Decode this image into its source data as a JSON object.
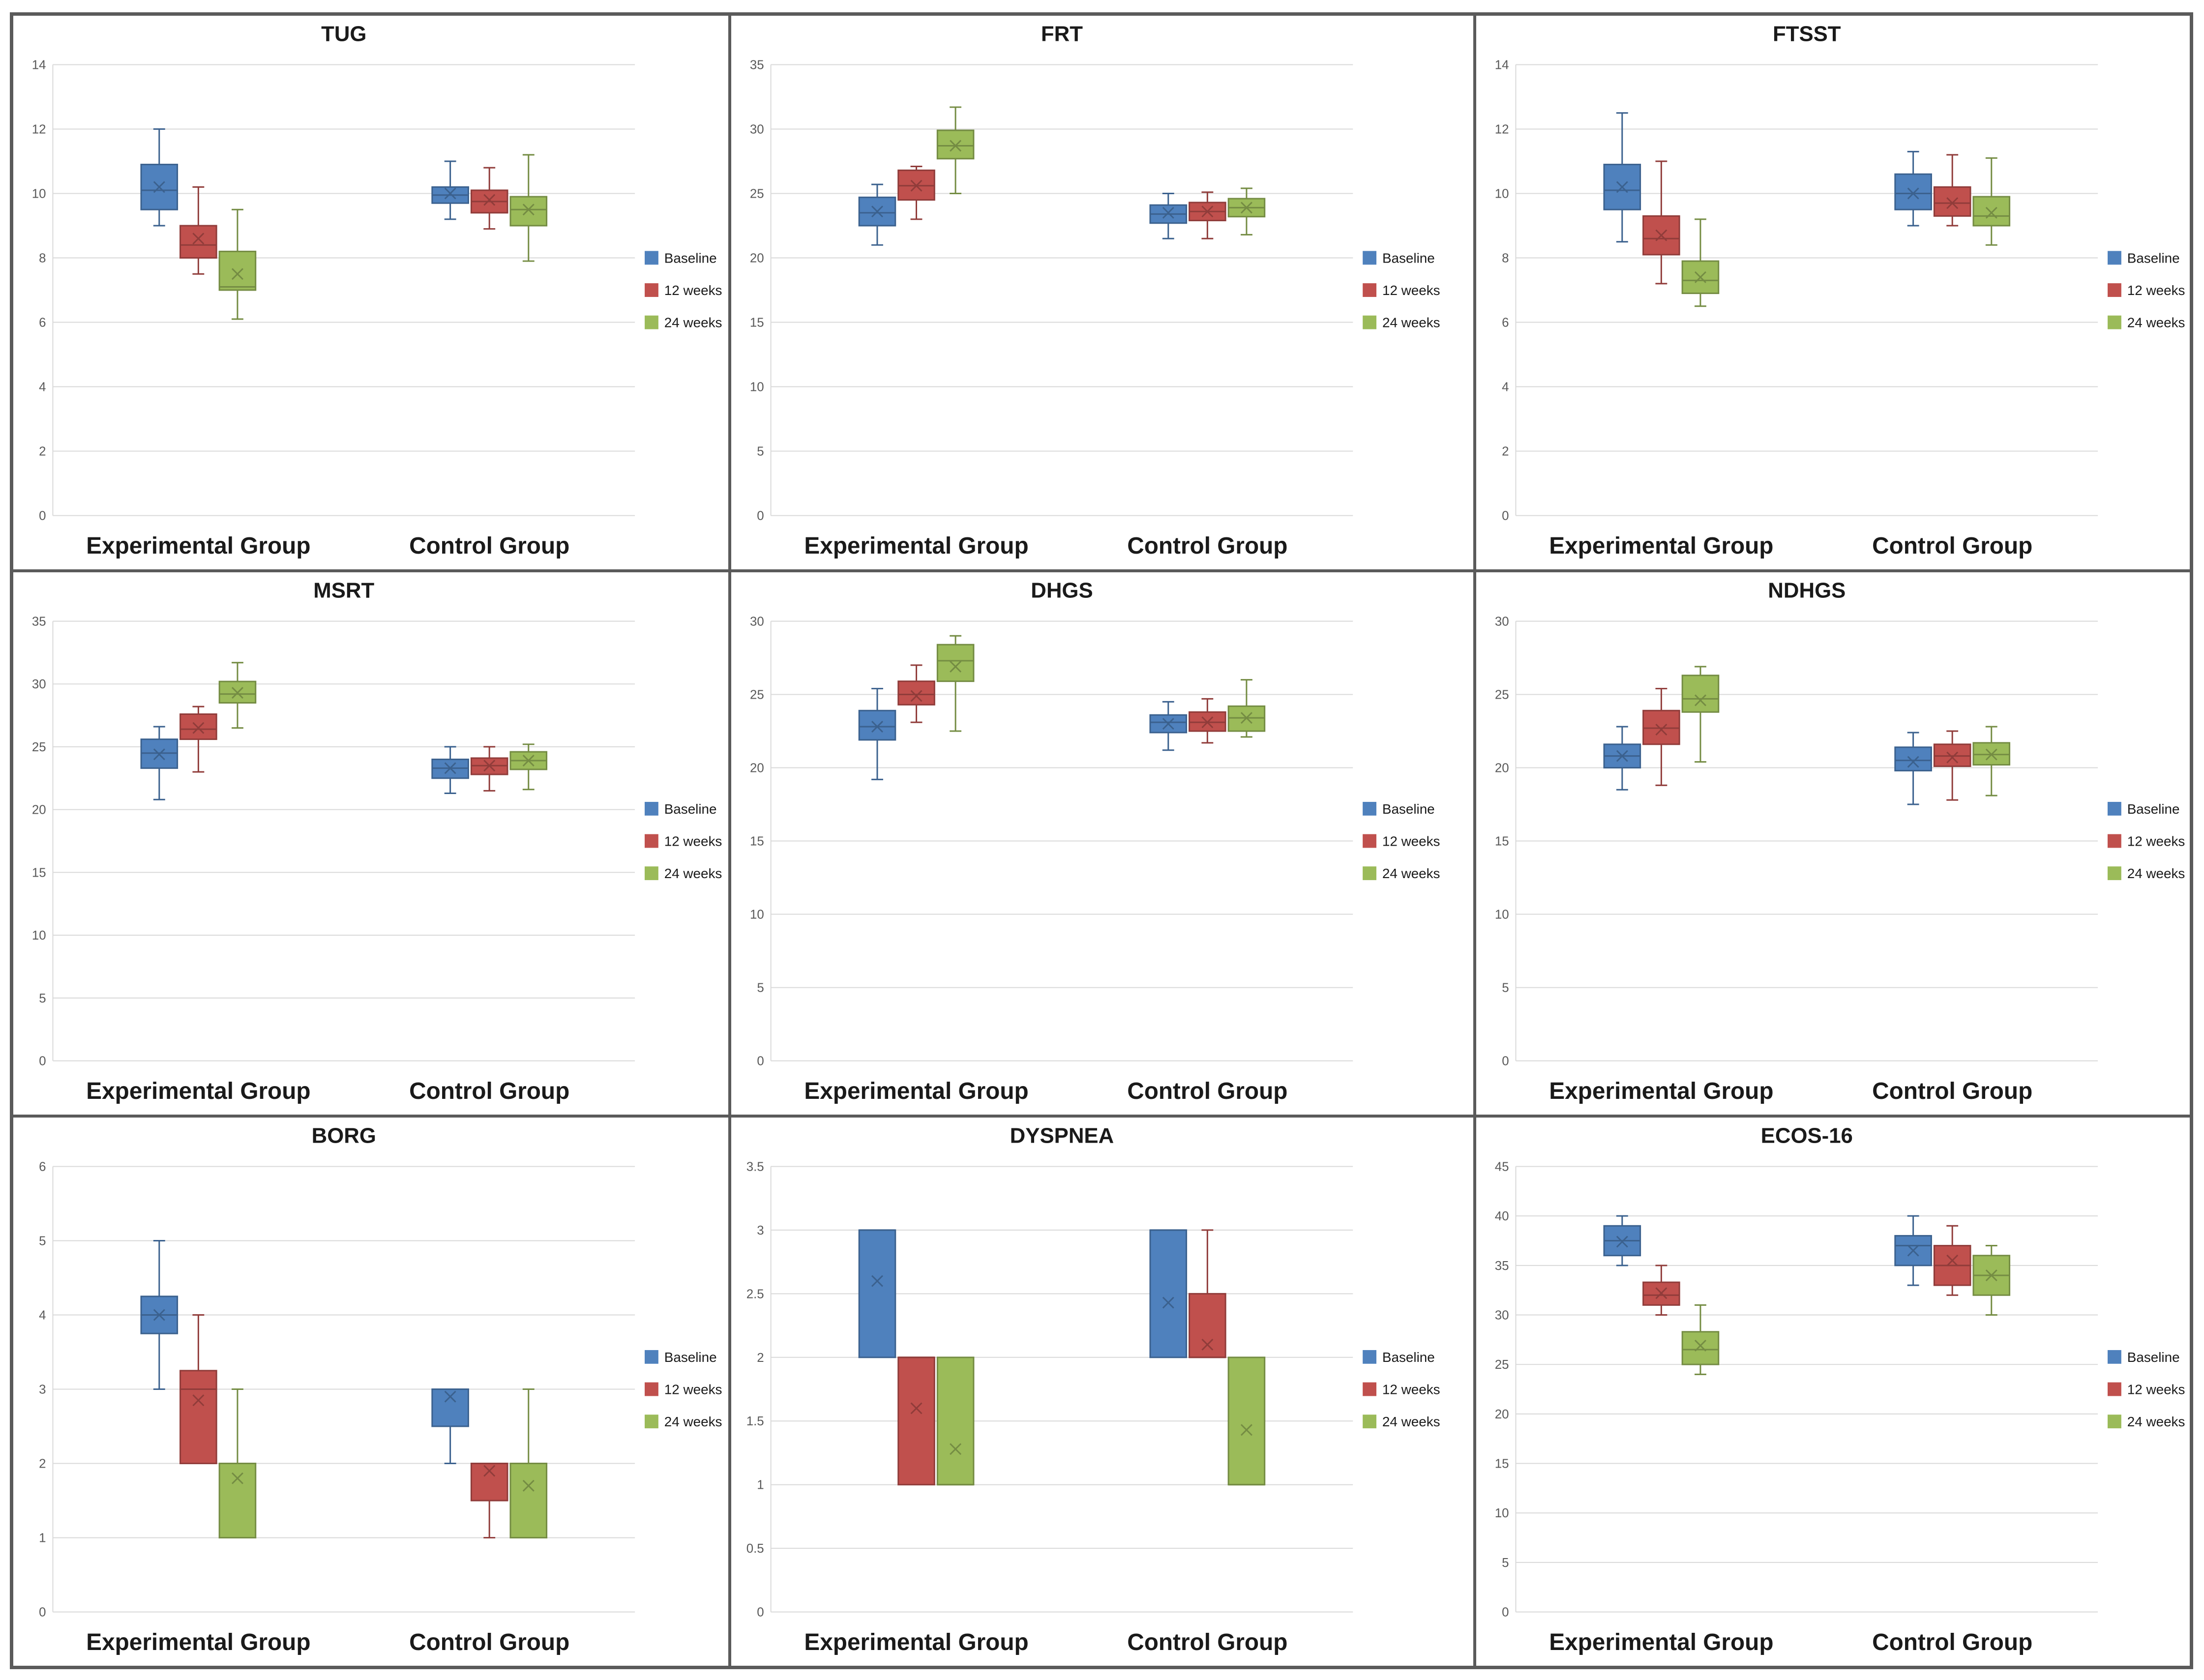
{
  "chart_data": [
    {
      "type": "box",
      "title": "TUG",
      "categories": [
        "Experimental Group",
        "Control Group"
      ],
      "ylim": [
        0,
        14
      ],
      "ytick_step": 2,
      "yticks": [
        "0",
        "2",
        "4",
        "6",
        "8",
        "10",
        "12",
        "14"
      ],
      "legend": [
        "Baseline",
        "12 weeks",
        "24 weeks"
      ],
      "series": [
        {
          "name": "Baseline",
          "color": "#4f81bd",
          "boxes": [
            {
              "min": 9.0,
              "q1": 9.5,
              "median": 10.1,
              "q3": 10.9,
              "max": 12.0,
              "mean": 10.2
            },
            {
              "min": 9.2,
              "q1": 9.7,
              "median": 9.95,
              "q3": 10.2,
              "max": 11.0,
              "mean": 10.0
            }
          ]
        },
        {
          "name": "12 weeks",
          "color": "#c0504d",
          "boxes": [
            {
              "min": 7.5,
              "q1": 8.0,
              "median": 8.4,
              "q3": 9.0,
              "max": 10.2,
              "mean": 8.6
            },
            {
              "min": 8.9,
              "q1": 9.4,
              "median": 9.75,
              "q3": 10.1,
              "max": 10.8,
              "mean": 9.8
            }
          ]
        },
        {
          "name": "24 weeks",
          "color": "#9bbb59",
          "boxes": [
            {
              "min": 6.1,
              "q1": 7.0,
              "median": 7.1,
              "q3": 8.2,
              "max": 9.5,
              "mean": 7.5
            },
            {
              "min": 7.9,
              "q1": 9.0,
              "median": 9.5,
              "q3": 9.9,
              "max": 11.2,
              "mean": 9.5
            }
          ]
        }
      ]
    },
    {
      "type": "box",
      "title": "FRT",
      "categories": [
        "Experimental Group",
        "Control Group"
      ],
      "ylim": [
        0,
        35
      ],
      "ytick_step": 5,
      "yticks": [
        "0",
        "5",
        "10",
        "15",
        "20",
        "25",
        "30",
        "35"
      ],
      "legend": [
        "Baseline",
        "12 weeks",
        "24 weeks"
      ],
      "series": [
        {
          "name": "Baseline",
          "color": "#4f81bd",
          "boxes": [
            {
              "min": 21.0,
              "q1": 22.5,
              "median": 23.5,
              "q3": 24.7,
              "max": 25.7,
              "mean": 23.6
            },
            {
              "min": 21.5,
              "q1": 22.7,
              "median": 23.4,
              "q3": 24.1,
              "max": 25.0,
              "mean": 23.5
            }
          ]
        },
        {
          "name": "12 weeks",
          "color": "#c0504d",
          "boxes": [
            {
              "min": 23.0,
              "q1": 24.5,
              "median": 25.6,
              "q3": 26.8,
              "max": 27.1,
              "mean": 25.6
            },
            {
              "min": 21.5,
              "q1": 22.9,
              "median": 23.6,
              "q3": 24.3,
              "max": 25.1,
              "mean": 23.6
            }
          ]
        },
        {
          "name": "24 weeks",
          "color": "#9bbb59",
          "boxes": [
            {
              "min": 25.0,
              "q1": 27.7,
              "median": 28.7,
              "q3": 29.9,
              "max": 31.7,
              "mean": 28.7
            },
            {
              "min": 21.8,
              "q1": 23.2,
              "median": 23.9,
              "q3": 24.6,
              "max": 25.4,
              "mean": 23.9
            }
          ]
        }
      ]
    },
    {
      "type": "box",
      "title": "FTSST",
      "categories": [
        "Experimental Group",
        "Control Group"
      ],
      "ylim": [
        0,
        14
      ],
      "ytick_step": 2,
      "yticks": [
        "0",
        "2",
        "4",
        "6",
        "8",
        "10",
        "12",
        "14"
      ],
      "legend": [
        "Baseline",
        "12 weeks",
        "24 weeks"
      ],
      "series": [
        {
          "name": "Baseline",
          "color": "#4f81bd",
          "boxes": [
            {
              "min": 8.5,
              "q1": 9.5,
              "median": 10.1,
              "q3": 10.9,
              "max": 12.5,
              "mean": 10.2
            },
            {
              "min": 9.0,
              "q1": 9.5,
              "median": 10.0,
              "q3": 10.6,
              "max": 11.3,
              "mean": 10.0
            }
          ]
        },
        {
          "name": "12 weeks",
          "color": "#c0504d",
          "boxes": [
            {
              "min": 7.2,
              "q1": 8.1,
              "median": 8.6,
              "q3": 9.3,
              "max": 11.0,
              "mean": 8.7
            },
            {
              "min": 9.0,
              "q1": 9.3,
              "median": 9.7,
              "q3": 10.2,
              "max": 11.2,
              "mean": 9.7
            }
          ]
        },
        {
          "name": "24 weeks",
          "color": "#9bbb59",
          "boxes": [
            {
              "min": 6.5,
              "q1": 6.9,
              "median": 7.3,
              "q3": 7.9,
              "max": 9.2,
              "mean": 7.4
            },
            {
              "min": 8.4,
              "q1": 9.0,
              "median": 9.3,
              "q3": 9.9,
              "max": 11.1,
              "mean": 9.4
            }
          ]
        }
      ]
    },
    {
      "type": "box",
      "title": "MSRT",
      "categories": [
        "Experimental Group",
        "Control Group"
      ],
      "ylim": [
        0,
        35
      ],
      "ytick_step": 5,
      "yticks": [
        "0",
        "5",
        "10",
        "15",
        "20",
        "25",
        "30",
        "35"
      ],
      "legend": [
        "Baseline",
        "12 weeks",
        "24 weeks"
      ],
      "series": [
        {
          "name": "Baseline",
          "color": "#4f81bd",
          "boxes": [
            {
              "min": 20.8,
              "q1": 23.3,
              "median": 24.5,
              "q3": 25.6,
              "max": 26.6,
              "mean": 24.4
            },
            {
              "min": 21.3,
              "q1": 22.5,
              "median": 23.3,
              "q3": 24.0,
              "max": 25.0,
              "mean": 23.3
            }
          ]
        },
        {
          "name": "12 weeks",
          "color": "#c0504d",
          "boxes": [
            {
              "min": 23.0,
              "q1": 25.6,
              "median": 26.4,
              "q3": 27.6,
              "max": 28.2,
              "mean": 26.5
            },
            {
              "min": 21.5,
              "q1": 22.8,
              "median": 23.5,
              "q3": 24.1,
              "max": 25.0,
              "mean": 23.5
            }
          ]
        },
        {
          "name": "24 weeks",
          "color": "#9bbb59",
          "boxes": [
            {
              "min": 26.5,
              "q1": 28.5,
              "median": 29.2,
              "q3": 30.2,
              "max": 31.7,
              "mean": 29.3
            },
            {
              "min": 21.6,
              "q1": 23.2,
              "median": 23.9,
              "q3": 24.6,
              "max": 25.2,
              "mean": 23.9
            }
          ]
        }
      ]
    },
    {
      "type": "box",
      "title": "DHGS",
      "categories": [
        "Experimental Group",
        "Control Group"
      ],
      "ylim": [
        0,
        30
      ],
      "ytick_step": 5,
      "yticks": [
        "0",
        "5",
        "10",
        "15",
        "20",
        "25",
        "30"
      ],
      "legend": [
        "Baseline",
        "12 weeks",
        "24 weeks"
      ],
      "series": [
        {
          "name": "Baseline",
          "color": "#4f81bd",
          "boxes": [
            {
              "min": 19.2,
              "q1": 21.9,
              "median": 22.8,
              "q3": 23.9,
              "max": 25.4,
              "mean": 22.8
            },
            {
              "min": 21.2,
              "q1": 22.4,
              "median": 23.1,
              "q3": 23.6,
              "max": 24.5,
              "mean": 23.0
            }
          ]
        },
        {
          "name": "12 weeks",
          "color": "#c0504d",
          "boxes": [
            {
              "min": 23.1,
              "q1": 24.3,
              "median": 25.0,
              "q3": 25.9,
              "max": 27.0,
              "mean": 24.9
            },
            {
              "min": 21.7,
              "q1": 22.5,
              "median": 23.1,
              "q3": 23.8,
              "max": 24.7,
              "mean": 23.1
            }
          ]
        },
        {
          "name": "24 weeks",
          "color": "#9bbb59",
          "boxes": [
            {
              "min": 22.5,
              "q1": 25.9,
              "median": 27.3,
              "q3": 28.4,
              "max": 29.0,
              "mean": 26.9
            },
            {
              "min": 22.1,
              "q1": 22.5,
              "median": 23.4,
              "q3": 24.2,
              "max": 26.0,
              "mean": 23.4
            }
          ]
        }
      ]
    },
    {
      "type": "box",
      "title": "NDHGS",
      "categories": [
        "Experimental Group",
        "Control Group"
      ],
      "ylim": [
        0,
        30
      ],
      "ytick_step": 5,
      "yticks": [
        "0",
        "5",
        "10",
        "15",
        "20",
        "25",
        "30"
      ],
      "legend": [
        "Baseline",
        "12 weeks",
        "24 weeks"
      ],
      "series": [
        {
          "name": "Baseline",
          "color": "#4f81bd",
          "boxes": [
            {
              "min": 18.5,
              "q1": 20.0,
              "median": 20.8,
              "q3": 21.6,
              "max": 22.8,
              "mean": 20.8
            },
            {
              "min": 17.5,
              "q1": 19.8,
              "median": 20.5,
              "q3": 21.4,
              "max": 22.4,
              "mean": 20.4
            }
          ]
        },
        {
          "name": "12 weeks",
          "color": "#c0504d",
          "boxes": [
            {
              "min": 18.8,
              "q1": 21.6,
              "median": 22.7,
              "q3": 23.9,
              "max": 25.4,
              "mean": 22.6
            },
            {
              "min": 17.8,
              "q1": 20.1,
              "median": 20.8,
              "q3": 21.6,
              "max": 22.5,
              "mean": 20.7
            }
          ]
        },
        {
          "name": "24 weeks",
          "color": "#9bbb59",
          "boxes": [
            {
              "min": 20.4,
              "q1": 23.8,
              "median": 24.7,
              "q3": 26.3,
              "max": 26.9,
              "mean": 24.6
            },
            {
              "min": 18.1,
              "q1": 20.2,
              "median": 20.9,
              "q3": 21.7,
              "max": 22.8,
              "mean": 20.9
            }
          ]
        }
      ]
    },
    {
      "type": "box",
      "title": "BORG",
      "categories": [
        "Experimental Group",
        "Control Group"
      ],
      "ylim": [
        0,
        6
      ],
      "ytick_step": 1,
      "yticks": [
        "0",
        "1",
        "2",
        "3",
        "4",
        "5",
        "6"
      ],
      "legend": [
        "Baseline",
        "12 weeks",
        "24 weeks"
      ],
      "series": [
        {
          "name": "Baseline",
          "color": "#4f81bd",
          "boxes": [
            {
              "min": 3.0,
              "q1": 3.75,
              "median": 4.0,
              "q3": 4.25,
              "max": 5.0,
              "mean": 4.0
            },
            {
              "min": 2.0,
              "q1": 2.5,
              "median": 3.0,
              "q3": 3.0,
              "max": 3.0,
              "mean": 2.9
            }
          ]
        },
        {
          "name": "12 weeks",
          "color": "#c0504d",
          "boxes": [
            {
              "min": 2.0,
              "q1": 2.0,
              "median": 3.0,
              "q3": 3.25,
              "max": 4.0,
              "mean": 2.85
            },
            {
              "min": 1.0,
              "q1": 1.5,
              "median": 2.0,
              "q3": 2.0,
              "max": 2.0,
              "mean": 1.9
            }
          ]
        },
        {
          "name": "24 weeks",
          "color": "#9bbb59",
          "boxes": [
            {
              "min": 1.0,
              "q1": 1.0,
              "median": 2.0,
              "q3": 2.0,
              "max": 3.0,
              "mean": 1.8
            },
            {
              "min": 1.0,
              "q1": 1.0,
              "median": 2.0,
              "q3": 2.0,
              "max": 3.0,
              "mean": 1.7
            }
          ]
        }
      ]
    },
    {
      "type": "box",
      "title": "DYSPNEA",
      "categories": [
        "Experimental Group",
        "Control Group"
      ],
      "ylim": [
        0,
        3.5
      ],
      "ytick_step": 0.5,
      "yticks": [
        "0",
        "0.5",
        "1",
        "1.5",
        "2",
        "2.5",
        "3",
        "3.5"
      ],
      "legend": [
        "Baseline",
        "12 weeks",
        "24 weeks"
      ],
      "series": [
        {
          "name": "Baseline",
          "color": "#4f81bd",
          "boxes": [
            {
              "min": 2.0,
              "q1": 2.0,
              "median": 3.0,
              "q3": 3.0,
              "max": 3.0,
              "mean": 2.6
            },
            {
              "min": 2.0,
              "q1": 2.0,
              "median": 3.0,
              "q3": 3.0,
              "max": 3.0,
              "mean": 2.43
            }
          ]
        },
        {
          "name": "12 weeks",
          "color": "#c0504d",
          "boxes": [
            {
              "min": 1.0,
              "q1": 1.0,
              "median": 2.0,
              "q3": 2.0,
              "max": 2.0,
              "mean": 1.6
            },
            {
              "min": 2.0,
              "q1": 2.0,
              "median": 2.0,
              "q3": 2.5,
              "max": 3.0,
              "mean": 2.1
            }
          ]
        },
        {
          "name": "24 weeks",
          "color": "#9bbb59",
          "boxes": [
            {
              "min": 1.0,
              "q1": 1.0,
              "median": 1.0,
              "q3": 2.0,
              "max": 2.0,
              "mean": 1.28
            },
            {
              "min": 1.0,
              "q1": 1.0,
              "median": 1.0,
              "q3": 2.0,
              "max": 2.0,
              "mean": 1.43
            }
          ]
        }
      ]
    },
    {
      "type": "box",
      "title": "ECOS-16",
      "categories": [
        "Experimental Group",
        "Control Group"
      ],
      "ylim": [
        0,
        45
      ],
      "ytick_step": 5,
      "yticks": [
        "0",
        "5",
        "10",
        "15",
        "20",
        "25",
        "30",
        "35",
        "40",
        "45"
      ],
      "legend": [
        "Baseline",
        "12 weeks",
        "24 weeks"
      ],
      "series": [
        {
          "name": "Baseline",
          "color": "#4f81bd",
          "boxes": [
            {
              "min": 35.0,
              "q1": 36.0,
              "median": 37.5,
              "q3": 39.0,
              "max": 40.0,
              "mean": 37.4
            },
            {
              "min": 33.0,
              "q1": 35.0,
              "median": 37.0,
              "q3": 38.0,
              "max": 40.0,
              "mean": 36.5
            }
          ]
        },
        {
          "name": "12 weeks",
          "color": "#c0504d",
          "boxes": [
            {
              "min": 30.0,
              "q1": 31.0,
              "median": 32.0,
              "q3": 33.3,
              "max": 35.0,
              "mean": 32.2
            },
            {
              "min": 32.0,
              "q1": 33.0,
              "median": 35.0,
              "q3": 37.0,
              "max": 39.0,
              "mean": 35.5
            }
          ]
        },
        {
          "name": "24 weeks",
          "color": "#9bbb59",
          "boxes": [
            {
              "min": 24.0,
              "q1": 25.0,
              "median": 26.5,
              "q3": 28.3,
              "max": 31.0,
              "mean": 26.9
            },
            {
              "min": 30.0,
              "q1": 32.0,
              "median": 34.0,
              "q3": 36.0,
              "max": 37.0,
              "mean": 34.0
            }
          ]
        }
      ]
    }
  ]
}
